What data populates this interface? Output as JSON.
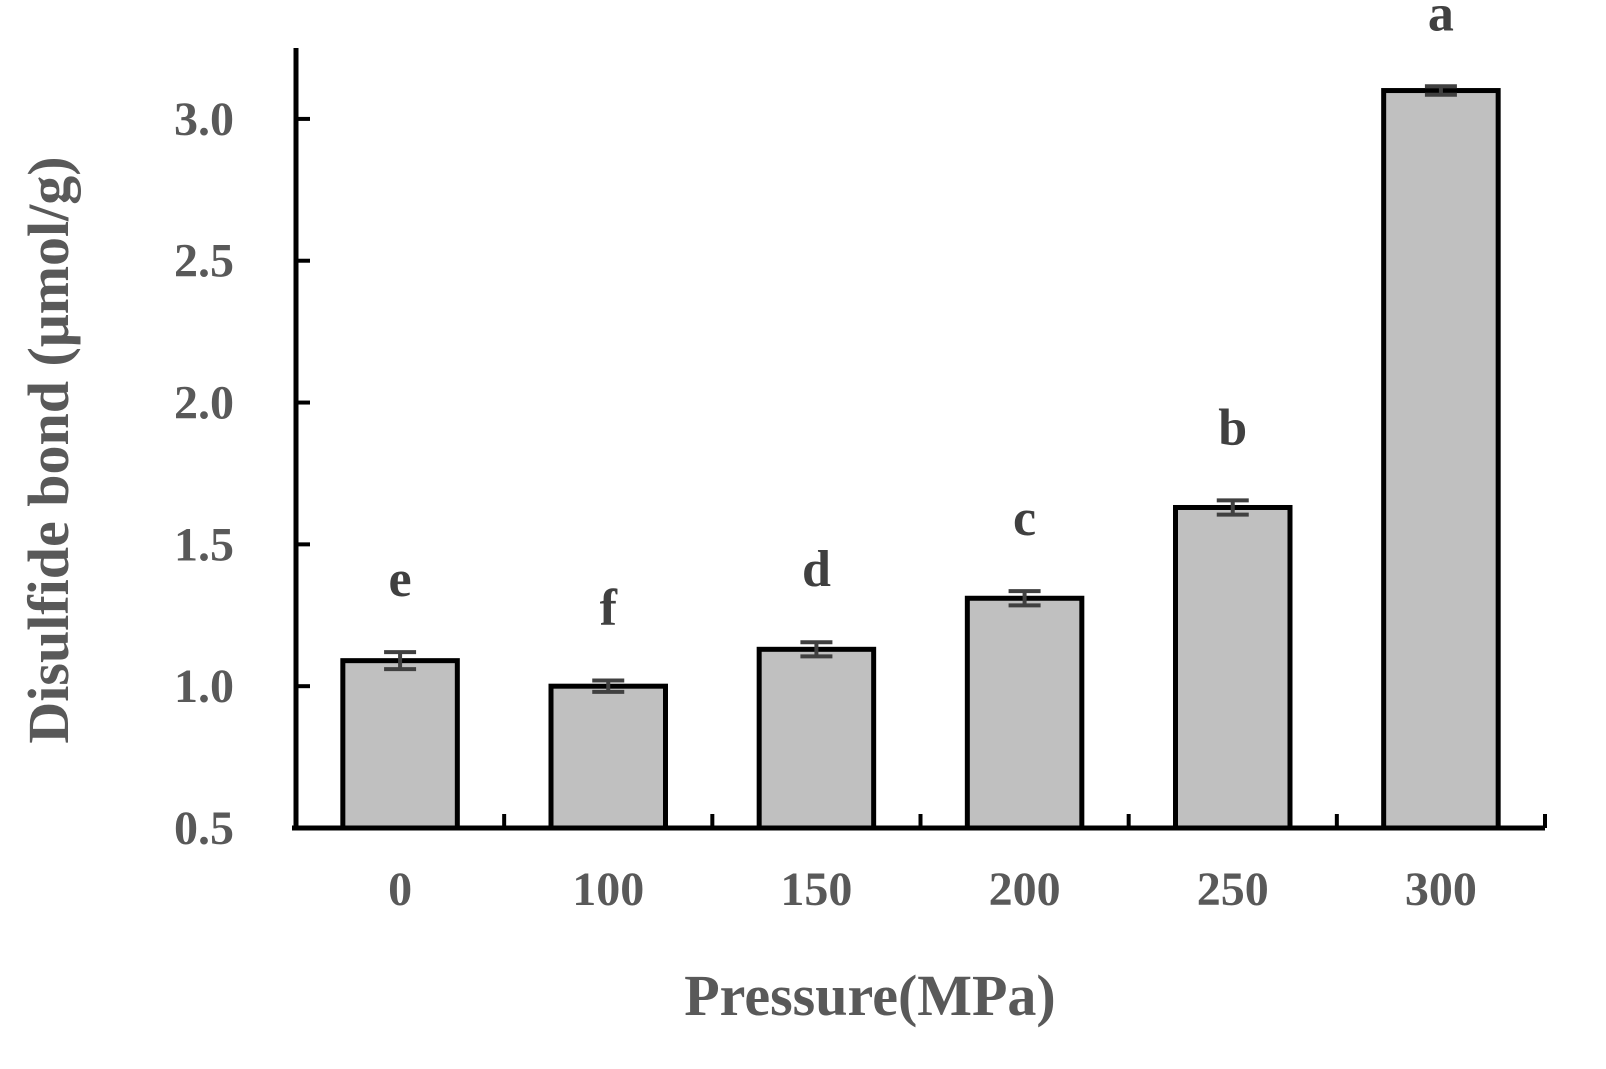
{
  "chart_data": {
    "type": "bar",
    "xlabel": "Pressure(MPa)",
    "ylabel": "Disulfide bond (μmol/g)",
    "categories": [
      "0",
      "100",
      "150",
      "200",
      "250",
      "300"
    ],
    "values": [
      1.09,
      1.0,
      1.13,
      1.31,
      1.63,
      3.1
    ],
    "errors": [
      0.03,
      0.02,
      0.025,
      0.025,
      0.025,
      0.015
    ],
    "significance_labels": [
      "e",
      "f",
      "d",
      "c",
      "b",
      "a"
    ],
    "ylim": [
      0.5,
      3.25
    ],
    "yticks": [
      0.5,
      1.0,
      1.5,
      2.0,
      2.5,
      3.0
    ],
    "ytick_labels": [
      "0.5",
      "1.0",
      "1.5",
      "2.0",
      "2.5",
      "3.0"
    ],
    "grid": false,
    "bar_color": "#c0c0c0",
    "bar_edge_color": "#000000",
    "error_color": "#404040",
    "text_color": "#595959"
  }
}
